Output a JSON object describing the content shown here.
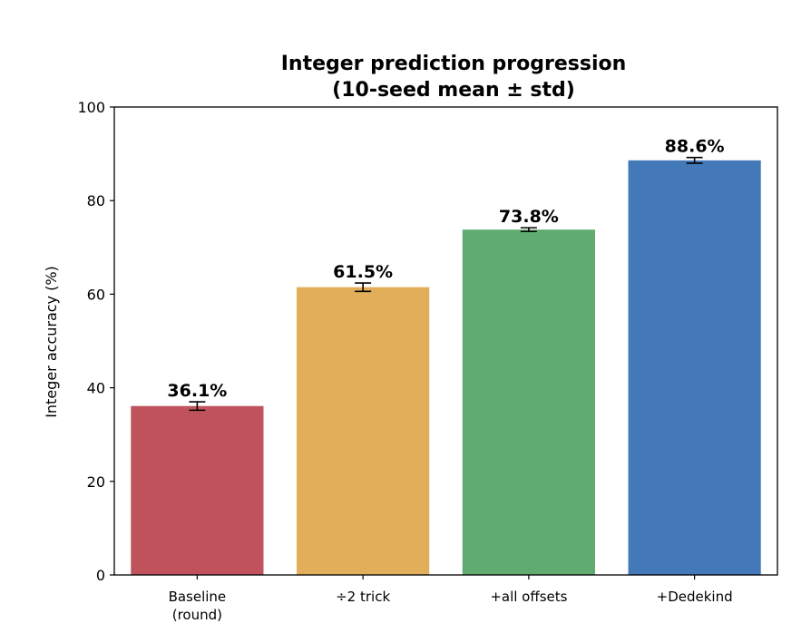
{
  "chart_data": {
    "type": "bar",
    "title": "Integer prediction progression",
    "subtitle": "(10-seed mean ± std)",
    "ylabel": "Integer accuracy (%)",
    "xlabel": "",
    "ylim": [
      0,
      100
    ],
    "yticks": [
      0,
      20,
      40,
      60,
      80,
      100
    ],
    "categories": [
      [
        "Baseline",
        "(round)"
      ],
      [
        "÷2 trick"
      ],
      [
        "+all offsets"
      ],
      [
        "+Dedekind"
      ]
    ],
    "values": [
      36.1,
      61.5,
      73.8,
      88.6
    ],
    "errors": [
      0.9,
      0.9,
      0.4,
      0.6
    ],
    "data_labels": [
      "36.1%",
      "61.5%",
      "73.8%",
      "88.6%"
    ],
    "colors": [
      "#c0525c",
      "#e2ae5a",
      "#5fab70",
      "#4479b9"
    ],
    "grid": false,
    "legend": "none"
  }
}
